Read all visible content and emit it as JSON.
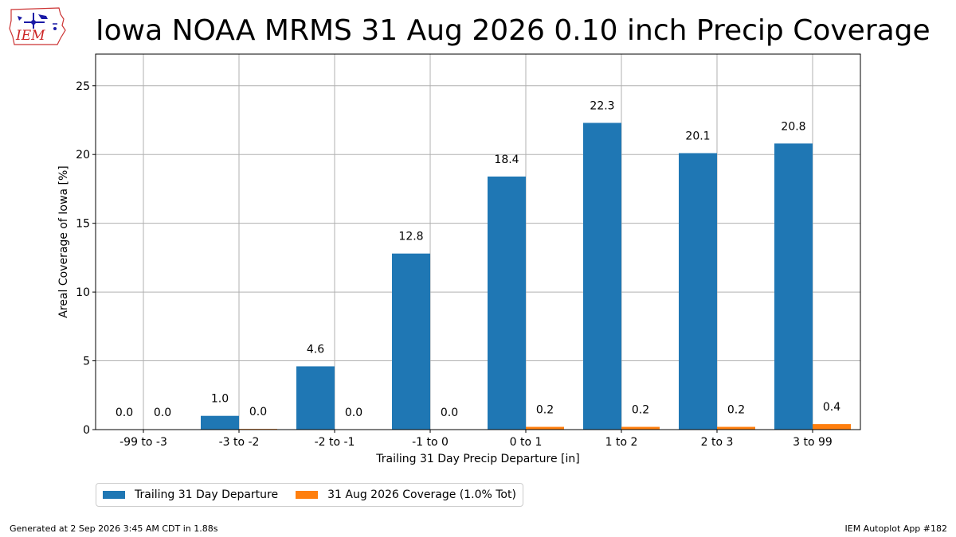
{
  "header": {
    "logo_text": "IEM",
    "title": "Iowa NOAA MRMS 31 Aug 2026 0.10 inch Precip Coverage"
  },
  "chart_data": {
    "type": "bar",
    "title": "Iowa NOAA MRMS 31 Aug 2026 0.10 inch Precip Coverage",
    "xlabel": "Trailing 31 Day Precip Departure [in]",
    "ylabel": "Areal Coverage of Iowa [%]",
    "categories": [
      "-99 to -3",
      "-3 to -2",
      "-2 to -1",
      "-1 to 0",
      "0 to 1",
      "1 to 2",
      "2 to 3",
      "3 to 99"
    ],
    "ylim": [
      0,
      27.3
    ],
    "yticks": [
      0,
      5,
      10,
      15,
      20,
      25
    ],
    "grid": true,
    "legend_position": "bottom-left",
    "series": [
      {
        "name": "Trailing 31 Day Departure",
        "color": "#1f77b4",
        "values": [
          0.0,
          1.0,
          4.6,
          12.8,
          18.4,
          22.3,
          20.1,
          20.8
        ],
        "labels": [
          "0.0",
          "1.0",
          "4.6",
          "12.8",
          "18.4",
          "22.3",
          "20.1",
          "20.8"
        ]
      },
      {
        "name": "31 Aug 2026 Coverage (1.0% Tot)",
        "color": "#ff7f0e",
        "values": [
          0.0,
          0.05,
          0.0,
          0.0,
          0.2,
          0.2,
          0.2,
          0.4
        ],
        "labels": [
          "0.0",
          "0.0",
          "0.0",
          "0.0",
          "0.2",
          "0.2",
          "0.2",
          "0.4"
        ]
      }
    ]
  },
  "footer": {
    "generated": "Generated at 2 Sep 2026 3:45 AM CDT in 1.88s",
    "app": "IEM Autoplot App #182"
  }
}
